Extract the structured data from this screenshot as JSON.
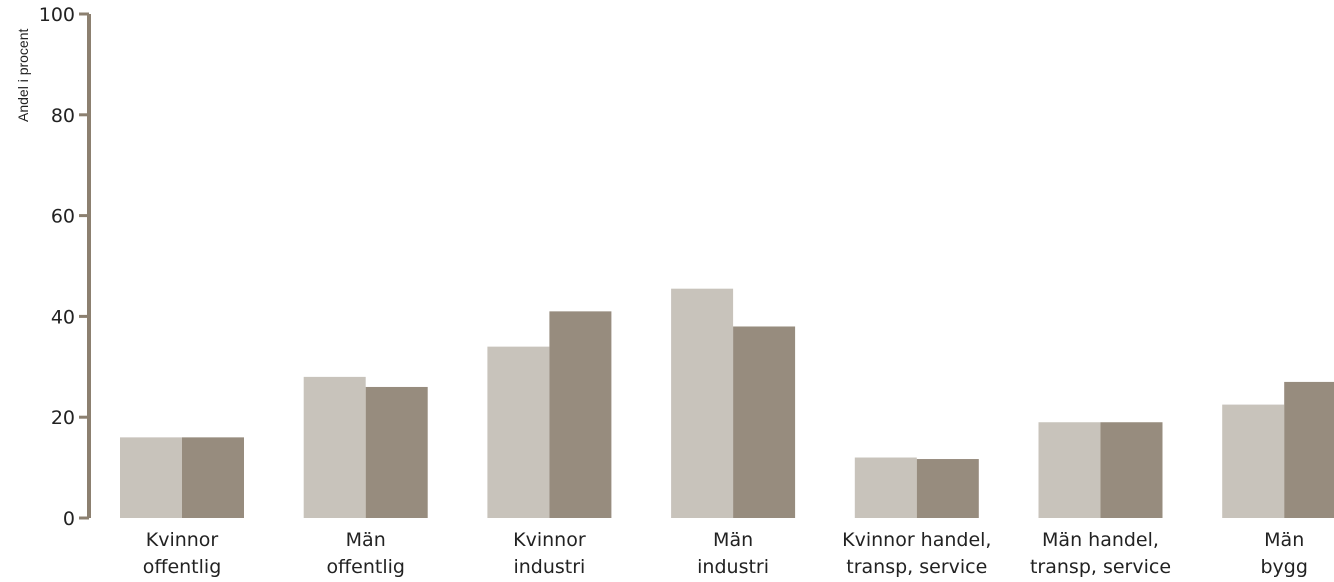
{
  "chart_data": {
    "type": "bar",
    "ylabel": "Andel i procent",
    "ylim": [
      0,
      100
    ],
    "yticks": [
      0,
      20,
      40,
      60,
      80,
      100
    ],
    "categories": [
      [
        "Kvinnor",
        "offentlig"
      ],
      [
        "Män",
        "offentlig"
      ],
      [
        "Kvinnor",
        "industri"
      ],
      [
        "Män",
        "industri"
      ],
      [
        "Kvinnor handel,",
        "transp, service"
      ],
      [
        "Män handel,",
        "transp, service"
      ],
      [
        "Män",
        "bygg"
      ]
    ],
    "series": [
      {
        "values": [
          16,
          28,
          34,
          45.5,
          12,
          19,
          22.5
        ]
      },
      {
        "values": [
          16,
          26,
          41,
          38,
          11.7,
          19,
          27
        ]
      }
    ],
    "colors": [
      "#c8c3bb",
      "#978c7e"
    ],
    "axis_color": "#8c8070",
    "grid": false,
    "legend": "none"
  }
}
